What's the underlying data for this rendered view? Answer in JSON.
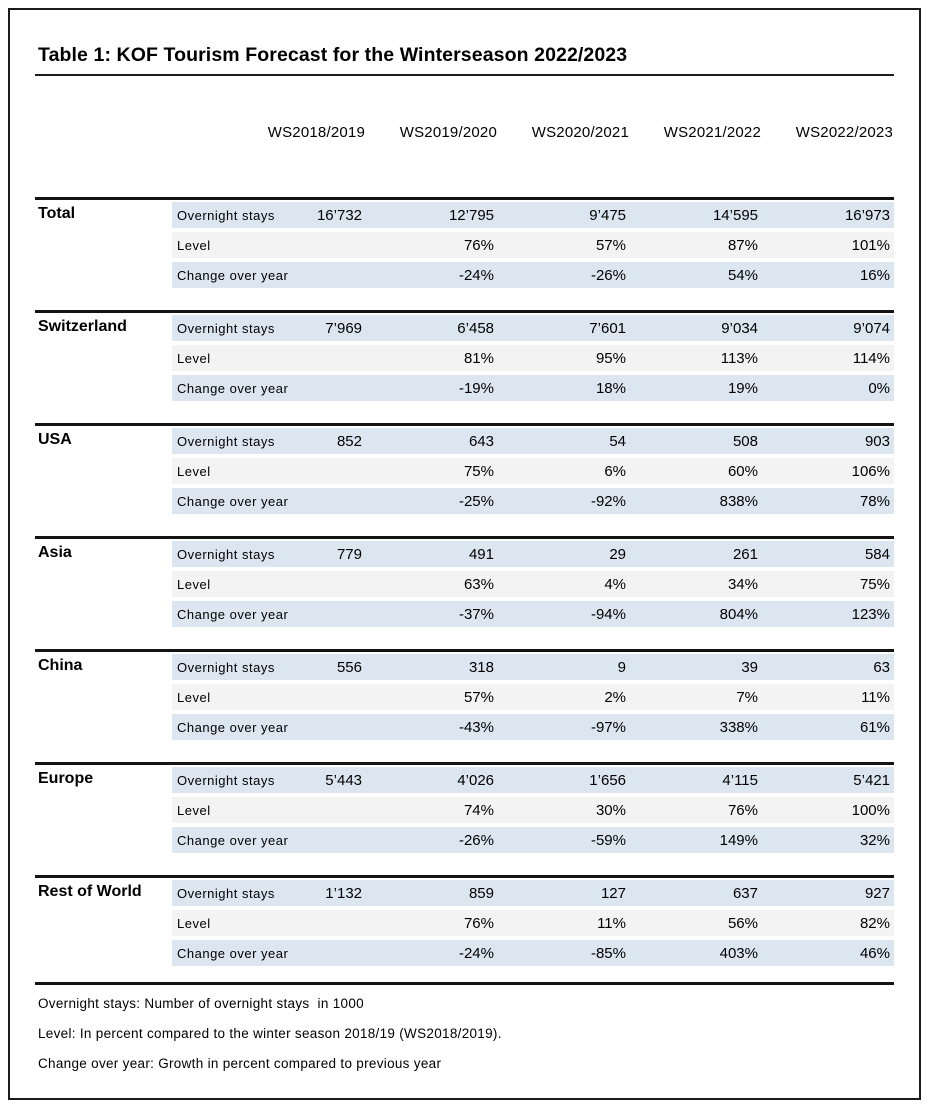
{
  "title": "Table 1: KOF Tourism Forecast for the Winterseason 2022/2023",
  "columns": [
    "WS2018/2019",
    "WS2019/2020",
    "WS2020/2021",
    "WS2021/2022",
    "WS2022/2023"
  ],
  "row_defs": [
    {
      "key": "overnight",
      "label": "Overnight stays",
      "shade": "blue"
    },
    {
      "key": "level",
      "label": "Level",
      "shade": "gray"
    },
    {
      "key": "change",
      "label": "Change over year",
      "shade": "blue"
    }
  ],
  "sections": [
    {
      "region": "Total",
      "rows": {
        "overnight": [
          "16’732",
          "12’795",
          "9’475",
          "14’595",
          "16’973"
        ],
        "level": [
          "",
          "76%",
          "57%",
          "87%",
          "101%"
        ],
        "change": [
          "",
          "-24%",
          "-26%",
          "54%",
          "16%"
        ]
      }
    },
    {
      "region": "Switzerland",
      "rows": {
        "overnight": [
          "7’969",
          "6’458",
          "7’601",
          "9’034",
          "9’074"
        ],
        "level": [
          "",
          "81%",
          "95%",
          "113%",
          "114%"
        ],
        "change": [
          "",
          "-19%",
          "18%",
          "19%",
          "0%"
        ]
      }
    },
    {
      "region": "USA",
      "rows": {
        "overnight": [
          "852",
          "643",
          "54",
          "508",
          "903"
        ],
        "level": [
          "",
          "75%",
          "6%",
          "60%",
          "106%"
        ],
        "change": [
          "",
          "-25%",
          "-92%",
          "838%",
          "78%"
        ]
      }
    },
    {
      "region": "Asia",
      "rows": {
        "overnight": [
          "779",
          "491",
          "29",
          "261",
          "584"
        ],
        "level": [
          "",
          "63%",
          "4%",
          "34%",
          "75%"
        ],
        "change": [
          "",
          "-37%",
          "-94%",
          "804%",
          "123%"
        ]
      }
    },
    {
      "region": "China",
      "rows": {
        "overnight": [
          "556",
          "318",
          "9",
          "39",
          "63"
        ],
        "level": [
          "",
          "57%",
          "2%",
          "7%",
          "11%"
        ],
        "change": [
          "",
          "-43%",
          "-97%",
          "338%",
          "61%"
        ]
      }
    },
    {
      "region": "Europe",
      "rows": {
        "overnight": [
          "5’443",
          "4’026",
          "1’656",
          "4’115",
          "5’421"
        ],
        "level": [
          "",
          "74%",
          "30%",
          "76%",
          "100%"
        ],
        "change": [
          "",
          "-26%",
          "-59%",
          "149%",
          "32%"
        ]
      }
    },
    {
      "region": "Rest of World",
      "rows": {
        "overnight": [
          "1’132",
          "859",
          "127",
          "637",
          "927"
        ],
        "level": [
          "",
          "76%",
          "11%",
          "56%",
          "82%"
        ],
        "change": [
          "",
          "-24%",
          "-85%",
          "403%",
          "46%"
        ]
      }
    }
  ],
  "footnotes": [
    "Overnight stays: Number of overnight stays  in 1000",
    "Level: In percent compared to the winter season 2018/19 (WS2018/2019).",
    "Change over year: Growth in percent compared to previous year"
  ],
  "colors": {
    "row_highlight_blue": "#dce6f1",
    "row_highlight_gray": "#f3f3f3",
    "rule_black": "#141414"
  }
}
